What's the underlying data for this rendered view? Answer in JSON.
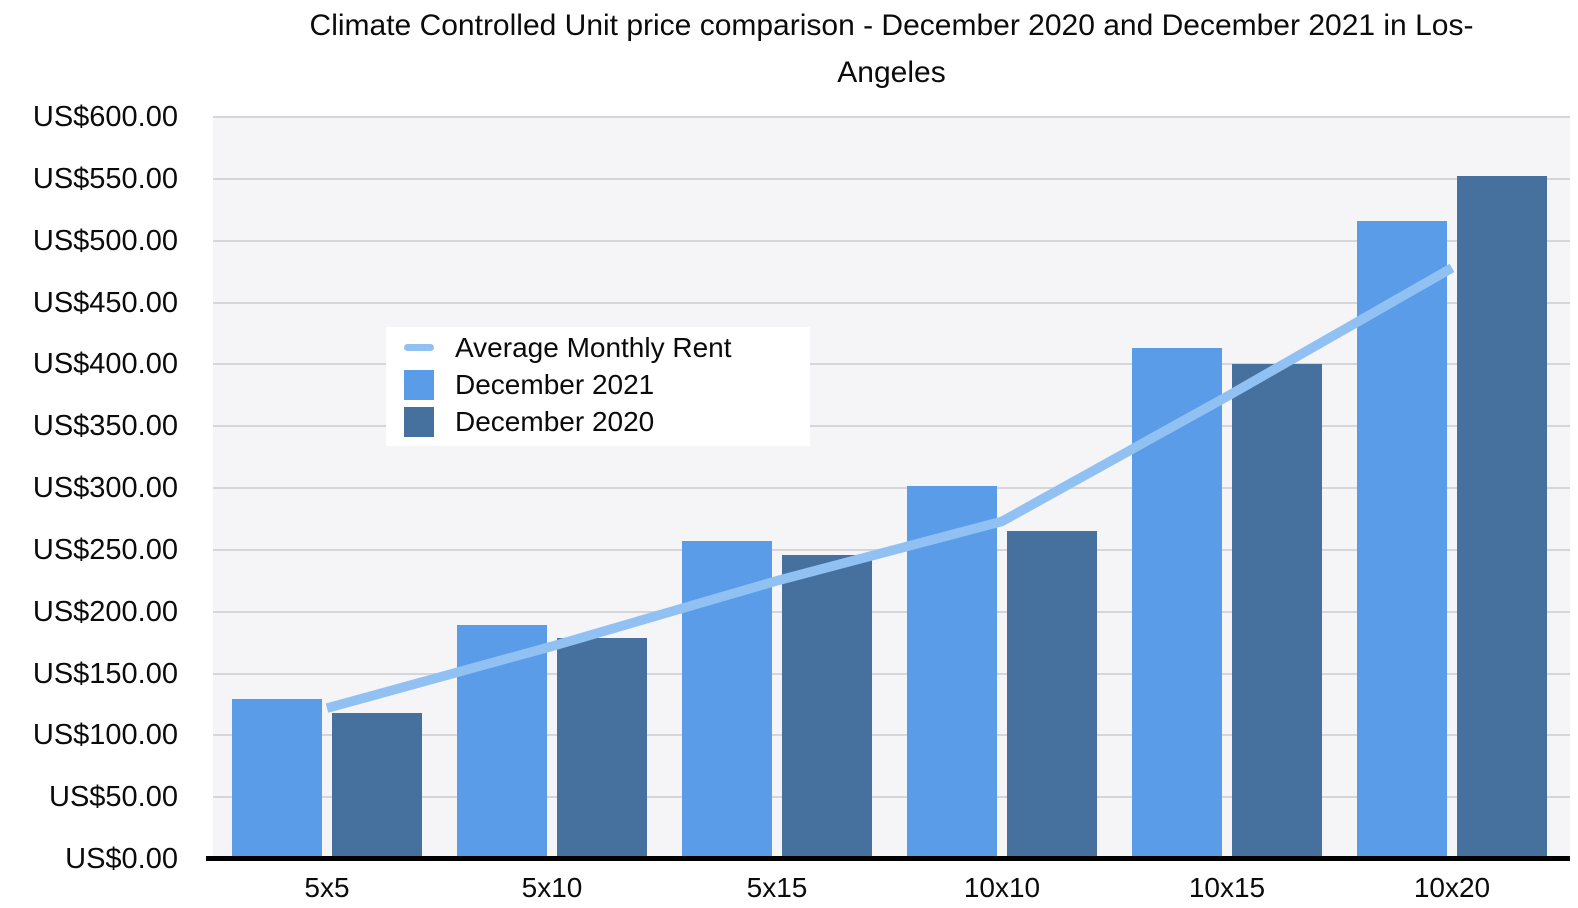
{
  "chart_data": {
    "type": "bar",
    "title": "Climate Controlled Unit price comparison - December 2020 and December 2021 in Los-Angeles",
    "title_line1": "Climate Controlled Unit price comparison - December 2020 and December 2021 in Los-",
    "title_line2": "Angeles",
    "categories": [
      "5x5",
      "5x10",
      "5x15",
      "10x10",
      "10x15",
      "10x20"
    ],
    "series": [
      {
        "name": "Average Monthly Rent",
        "type": "line",
        "color": "#90c1f2",
        "values": [
          122,
          172,
          225,
          273,
          374,
          478
        ]
      },
      {
        "name": "December 2021",
        "type": "bar",
        "color": "#5b9ce8",
        "values": [
          129,
          189,
          257,
          302,
          413,
          516
        ]
      },
      {
        "name": "December 2020",
        "type": "bar",
        "color": "#46719e",
        "values": [
          118,
          179,
          246,
          265,
          400,
          552
        ]
      }
    ],
    "y_axis": {
      "min": 0,
      "max": 600,
      "step": 50,
      "tick_labels": [
        "US$0.00",
        "US$50.00",
        "US$100.00",
        "US$150.00",
        "US$200.00",
        "US$250.00",
        "US$300.00",
        "US$350.00",
        "US$400.00",
        "US$450.00",
        "US$500.00",
        "US$550.00",
        "US$600.00"
      ]
    },
    "x_axis": {
      "tick_labels": [
        "5x5",
        "5x10",
        "5x15",
        "10x10",
        "10x15",
        "10x20"
      ]
    },
    "legend": {
      "position": "top-left-inside",
      "background": "#ffffff"
    },
    "grid": true,
    "colors": {
      "plot_background": "#f5f4f7",
      "gridline": "#d6d5da",
      "axis_line": "#000000",
      "text": "#0b0b0b"
    },
    "ylim": [
      0,
      600
    ]
  }
}
